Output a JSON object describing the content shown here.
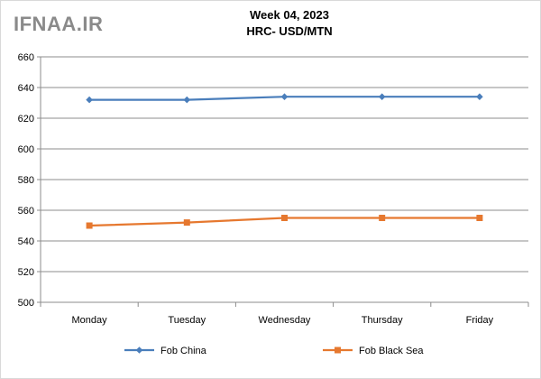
{
  "watermark": "IFNAA.IR",
  "chart_data": {
    "type": "line",
    "title": "Week 04, 2023",
    "subtitle": "HRC- USD/MTN",
    "xlabel": "",
    "ylabel": "",
    "categories": [
      "Monday",
      "Tuesday",
      "Wednesday",
      "Thursday",
      "Friday"
    ],
    "ylim": [
      500,
      660
    ],
    "yticks": [
      500,
      520,
      540,
      560,
      580,
      600,
      620,
      640,
      660
    ],
    "grid": true,
    "legend_position": "bottom",
    "series": [
      {
        "name": "Fob China",
        "values": [
          632,
          632,
          634,
          634,
          634
        ],
        "color": "#4a7ebb",
        "marker": "diamond"
      },
      {
        "name": "Fob Black Sea",
        "values": [
          550,
          552,
          555,
          555,
          555
        ],
        "color": "#e6782f",
        "marker": "square"
      }
    ]
  }
}
